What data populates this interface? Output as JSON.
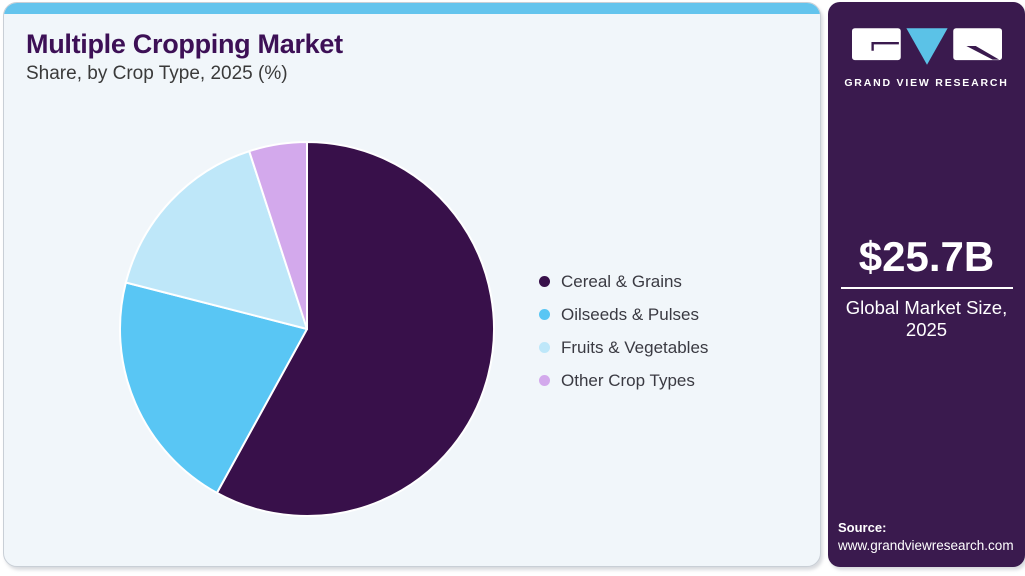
{
  "page": {
    "title": "Multiple Cropping Market",
    "subtitle": "Share, by Crop Type, 2025 (%)"
  },
  "chart_data": {
    "type": "pie",
    "title": "Multiple Cropping Market Share, by Crop Type, 2025 (%)",
    "categories": [
      "Cereal & Grains",
      "Oilseeds & Pulses",
      "Fruits & Vegetables",
      "Other Crop Types"
    ],
    "values": [
      58,
      21,
      16,
      5
    ],
    "unit": "percent share (estimated from slice angles, no data labels shown)",
    "colors": [
      "#38104A",
      "#59C6F4",
      "#BEE7F9",
      "#D3A9EC"
    ],
    "slice_border_color": "#FFFFFF",
    "start_angle_deg": 0,
    "direction": "clockwise",
    "legend_position": "right",
    "grid": false
  },
  "sidebar": {
    "brand_name": "GRAND VIEW RESEARCH",
    "market_size_value": "$25.7B",
    "market_size_label": "Global Market Size, 2025",
    "source_label": "Source:",
    "source_url": "www.grandviewresearch.com"
  },
  "theme": {
    "topbar_color": "#64C4ED",
    "card_background": "#F1F6FA",
    "sidebar_background": "#3A1A4E",
    "title_color": "#3D1056",
    "body_text_color": "#3A3A42",
    "brand_blue": "#5BC2E7"
  }
}
